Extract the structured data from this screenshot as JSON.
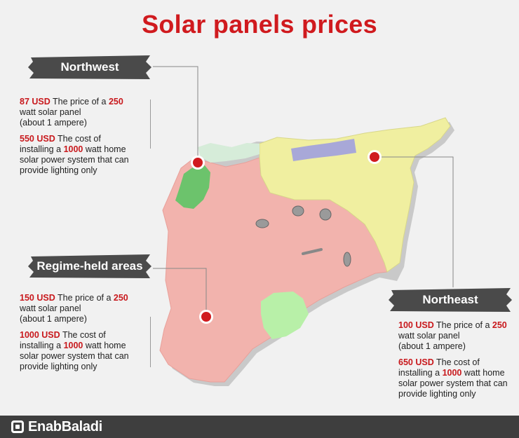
{
  "title": "Solar panels prices",
  "colors": {
    "title": "#d01a1e",
    "highlight": "#c8181c",
    "regime": "#f2b3ad",
    "northeast": "#f0efa0",
    "northwest": "#6cc36c",
    "turkish_held": "#d6ecd9",
    "kurdish_zone": "#a8a8d8",
    "south_green": "#b8f0a8",
    "banner": "#4a4a4a",
    "footer": "#3e3e3e",
    "marker": "#d01a1e"
  },
  "regions": {
    "northwest": {
      "name": "Northwest",
      "panel_price": "87 USD",
      "panel_text1": "The price of a",
      "panel_watt": "250",
      "panel_text2": "watt solar panel",
      "panel_text3": "(about 1 ampere)",
      "system_price": "550 USD",
      "system_text1": "The cost of",
      "system_text2": "installing a",
      "system_watt": "1000",
      "system_text3": "watt home",
      "system_text4": "solar power system that can",
      "system_text5": "provide lighting only"
    },
    "regime": {
      "name": "Regime-held areas",
      "panel_price": "150 USD",
      "panel_text1": "The price of a",
      "panel_watt": "250",
      "panel_text2": "watt solar panel",
      "panel_text3": "(about 1 ampere)",
      "system_price": "1000 USD",
      "system_text1": "The cost of",
      "system_text2": "installing a",
      "system_watt": "1000",
      "system_text3": "watt home",
      "system_text4": "solar power system that can",
      "system_text5": "provide lighting only"
    },
    "northeast": {
      "name": "Northeast",
      "panel_price": "100 USD",
      "panel_text1": "The price of a",
      "panel_watt": "250",
      "panel_text2": "watt solar panel",
      "panel_text3": "(about 1 ampere)",
      "system_price": "650 USD",
      "system_text1": "The cost of",
      "system_text2": "installing a",
      "system_watt": "1000",
      "system_text3": "watt home",
      "system_text4": "solar power system that can",
      "system_text5": "provide lighting only"
    }
  },
  "footer": {
    "brand": "EnabBaladi"
  }
}
